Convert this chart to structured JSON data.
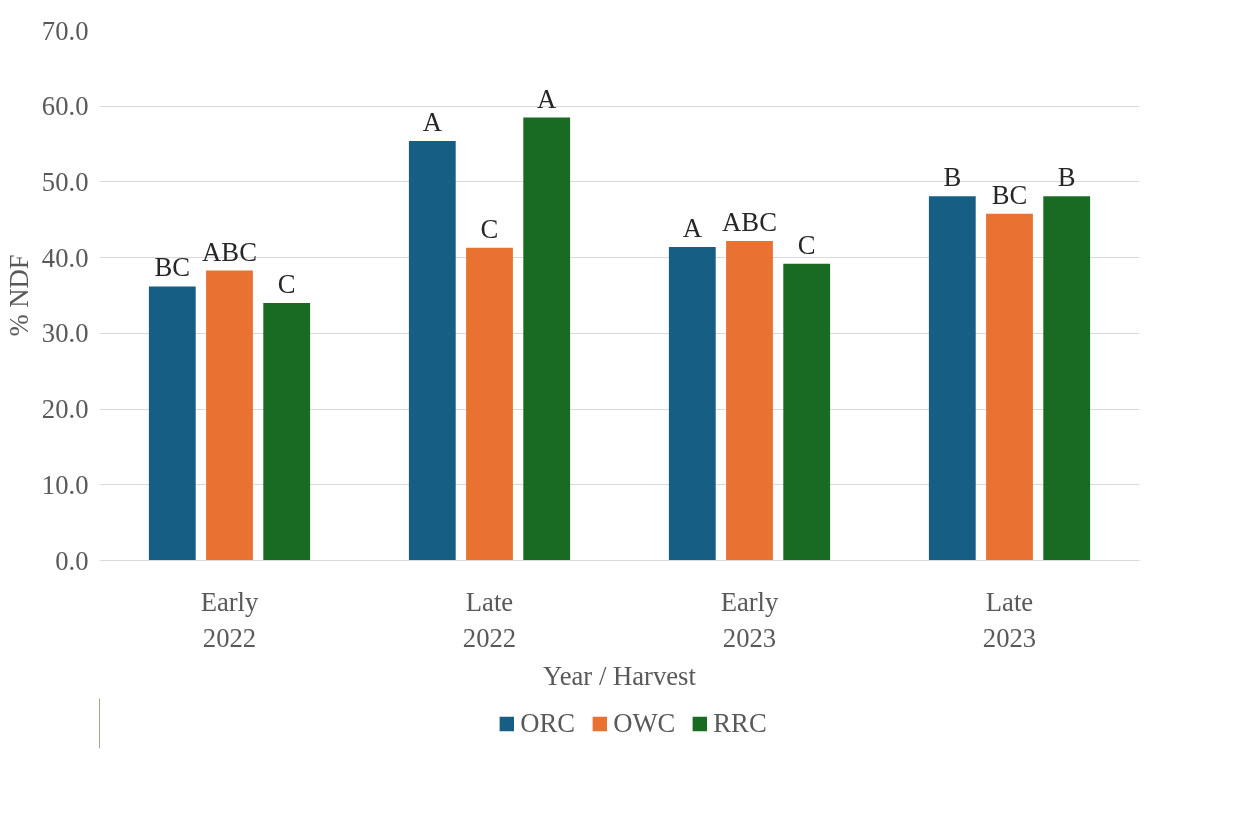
{
  "chart_data": {
    "type": "bar",
    "xlabel": "Year / Harvest",
    "ylabel": "% NDF",
    "categories": [
      "Early\n2022",
      "Late\n2022",
      "Early\n2023",
      "Late\n2023"
    ],
    "series": [
      {
        "name": "ORC",
        "color": "#175e84",
        "values": [
          36.2,
          55.4,
          41.4,
          48.1
        ],
        "value_labels": [
          "BC",
          "A",
          "A",
          "B"
        ]
      },
      {
        "name": "OWC",
        "color": "#e97132",
        "values": [
          38.3,
          41.3,
          42.2,
          45.8
        ],
        "value_labels": [
          "ABC",
          "C",
          "ABC",
          "BC"
        ]
      },
      {
        "name": "RRC",
        "color": "#196b24",
        "values": [
          34.0,
          58.5,
          39.2,
          48.1
        ],
        "value_labels": [
          "C",
          "A",
          "C",
          "B"
        ]
      }
    ],
    "ylim": [
      0,
      70
    ],
    "yticks": [
      {
        "value": 0,
        "label": "0.0"
      },
      {
        "value": 10,
        "label": "10.0"
      },
      {
        "value": 20,
        "label": "20.0"
      },
      {
        "value": 30,
        "label": "30.0"
      },
      {
        "value": 40,
        "label": "40.0"
      },
      {
        "value": 50,
        "label": "50.0"
      },
      {
        "value": 60,
        "label": "60.0"
      },
      {
        "value": 70,
        "label": "70.0"
      }
    ],
    "grid": "y",
    "legend": "bottom"
  }
}
